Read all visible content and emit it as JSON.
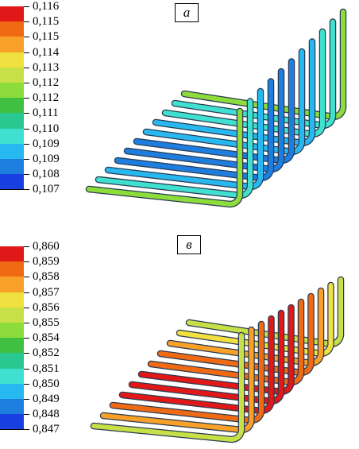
{
  "panels": [
    {
      "label": "a",
      "legend_values": [
        "0,116",
        "0,115",
        "0,115",
        "0,114",
        "0,113",
        "0,112",
        "0,112",
        "0,111",
        "0,110",
        "0,109",
        "0,109",
        "0,108",
        "0,107"
      ],
      "colors": [
        "#e01818",
        "#f06a14",
        "#f8a028",
        "#f0e040",
        "#c8e048",
        "#8cdc3c",
        "#40c040",
        "#28c890",
        "#40e0d0",
        "#28b8f0",
        "#1e7ee0",
        "#1840e0"
      ]
    },
    {
      "label": "в",
      "legend_values": [
        "0,860",
        "0,859",
        "0,858",
        "0,857",
        "0,856",
        "0,855",
        "0,854",
        "0,852",
        "0,851",
        "0,850",
        "0,849",
        "0,848",
        "0,847"
      ],
      "colors": [
        "#e01818",
        "#f06a14",
        "#f8a028",
        "#f0e040",
        "#c8e048",
        "#8cdc3c",
        "#40c040",
        "#28c890",
        "#40e0d0",
        "#28b8f0",
        "#1e7ee0",
        "#1840e0"
      ]
    }
  ]
}
